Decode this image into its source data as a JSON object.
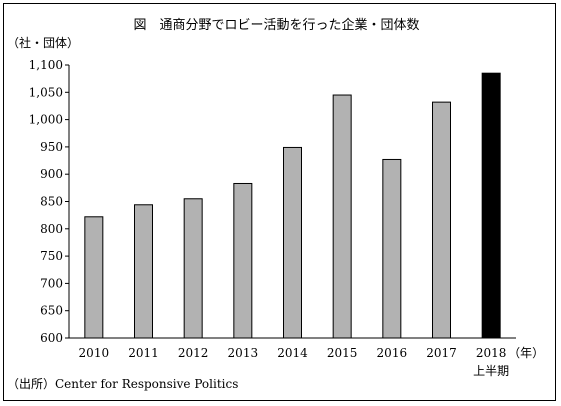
{
  "chart_data": {
    "type": "bar",
    "title": "図　通商分野でロビー活動を行った企業・団体数",
    "unit_label": "（社・団体）",
    "x_unit_label": "（年）",
    "categories": [
      "2010",
      "2011",
      "2012",
      "2013",
      "2014",
      "2015",
      "2016",
      "2017",
      "2018"
    ],
    "category_notes": [
      "",
      "",
      "",
      "",
      "",
      "",
      "",
      "",
      "上半期"
    ],
    "values": [
      822,
      844,
      855,
      883,
      949,
      1045,
      927,
      1032,
      1085
    ],
    "bar_colors": [
      "#b2b2b2",
      "#b2b2b2",
      "#b2b2b2",
      "#b2b2b2",
      "#b2b2b2",
      "#b2b2b2",
      "#b2b2b2",
      "#b2b2b2",
      "#000000"
    ],
    "bar_stroke": "#000000",
    "ylim": [
      600,
      1100
    ],
    "yticks": [
      600,
      650,
      700,
      750,
      800,
      850,
      900,
      950,
      1000,
      1050,
      1100
    ],
    "ytick_labels": [
      "600",
      "650",
      "700",
      "750",
      "800",
      "850",
      "900",
      "950",
      "1,000",
      "1,050",
      "1,100"
    ],
    "grid": false,
    "source": "（出所）Center for Responsive Politics"
  }
}
